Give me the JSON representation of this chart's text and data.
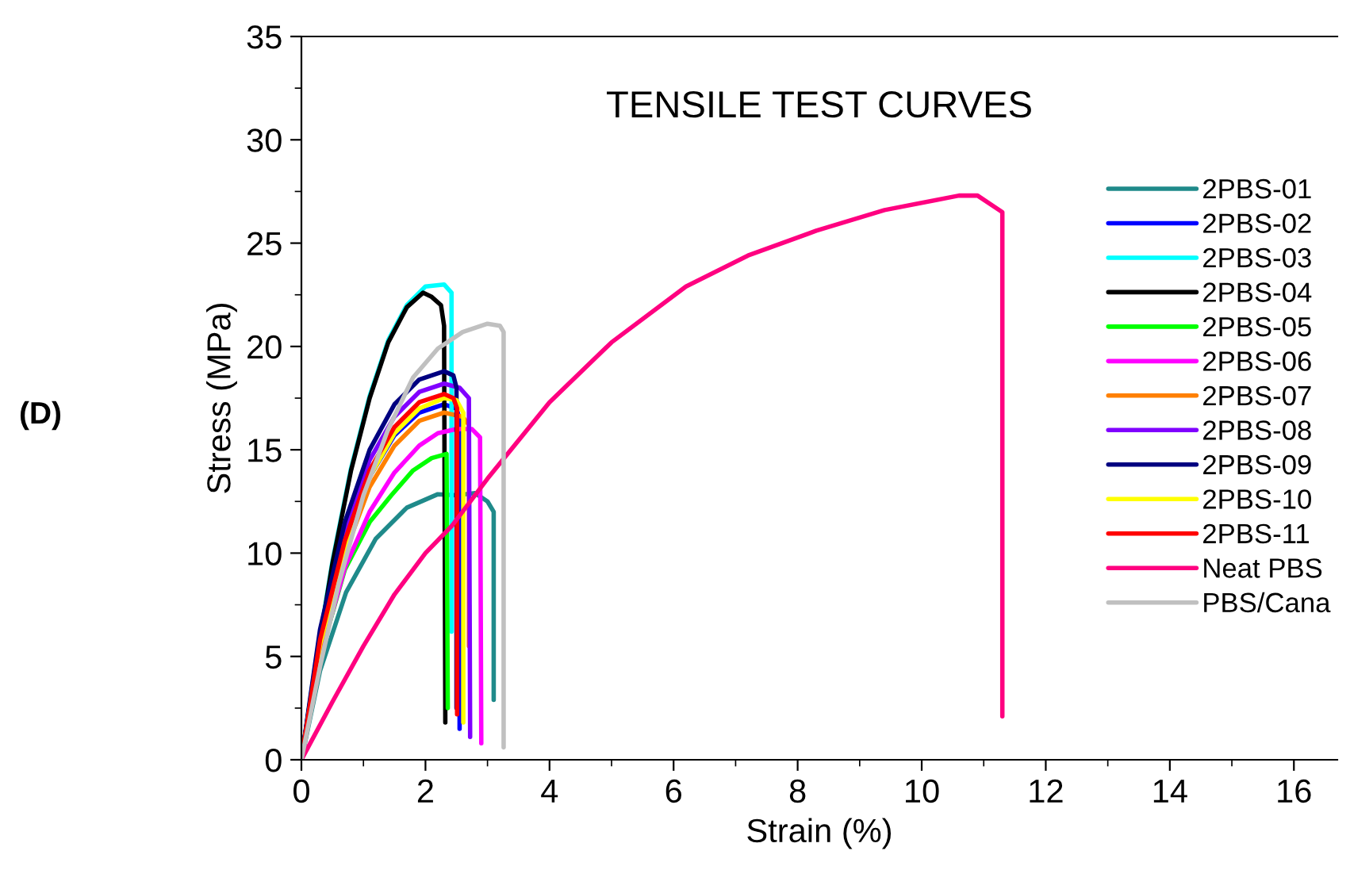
{
  "chart_data": {
    "type": "line",
    "title": "TENSILE TEST CURVES",
    "xlabel": "Strain (%)",
    "ylabel": "Stress (MPa)",
    "annotations": [
      "(D)"
    ],
    "xlim": [
      0,
      16.7
    ],
    "ylim": [
      0,
      35
    ],
    "xticks": [
      0,
      2,
      4,
      6,
      8,
      10,
      12,
      14,
      16
    ],
    "yticks": [
      0,
      5,
      10,
      15,
      20,
      25,
      30,
      35
    ],
    "grid": false,
    "legend": "right",
    "line_style": "solid",
    "marker": "none",
    "series": [
      {
        "name": "2PBS-01",
        "color": "#1f8a8a",
        "x": [
          0,
          0.3,
          0.72,
          1.2,
          1.7,
          2.2,
          2.5,
          2.8,
          3.0,
          3.1,
          3.1
        ],
        "values": [
          0,
          4.3,
          8.1,
          10.7,
          12.2,
          12.85,
          12.8,
          12.9,
          12.5,
          12,
          2.9
        ]
      },
      {
        "name": "2PBS-02",
        "color": "#0000ff",
        "x": [
          0.7,
          1.1,
          1.5,
          1.9,
          2.3,
          2.5,
          2.55,
          2.55
        ],
        "values": [
          10.4,
          13.7,
          15.7,
          16.8,
          17.2,
          17,
          16.5,
          1.5
        ]
      },
      {
        "name": "2PBS-03",
        "color": "#00ffff",
        "x": [
          0,
          0.2,
          0.5,
          0.8,
          1.1,
          1.4,
          1.7,
          2.0,
          2.3,
          2.42,
          2.42
        ],
        "values": [
          0,
          4.1,
          9.6,
          14.1,
          17.6,
          20.3,
          22,
          22.9,
          23,
          22.6,
          6.2
        ]
      },
      {
        "name": "2PBS-04",
        "color": "#000000",
        "x": [
          0,
          0.2,
          0.5,
          0.8,
          1.1,
          1.4,
          1.7,
          1.96,
          2.1,
          2.25,
          2.3,
          2.32
        ],
        "values": [
          0,
          4,
          9.5,
          14,
          17.5,
          20.2,
          21.9,
          22.6,
          22.4,
          22,
          21,
          1.8
        ]
      },
      {
        "name": "2PBS-05",
        "color": "#00ff00",
        "x": [
          0,
          0.3,
          0.7,
          1.1,
          1.45,
          1.8,
          2.1,
          2.34,
          2.36
        ],
        "values": [
          0,
          5,
          9.2,
          11.5,
          12.8,
          14,
          14.6,
          14.8,
          2.5
        ]
      },
      {
        "name": "2PBS-06",
        "color": "#ff00ff",
        "x": [
          0,
          0.3,
          0.7,
          1.1,
          1.5,
          1.9,
          2.2,
          2.5,
          2.75,
          2.88,
          2.9
        ],
        "values": [
          0,
          5,
          9.3,
          12,
          13.9,
          15.2,
          15.8,
          16,
          16,
          15.6,
          0.8
        ]
      },
      {
        "name": "2PBS-07",
        "color": "#ff8000",
        "x": [
          0,
          0.3,
          0.7,
          1.1,
          1.5,
          1.9,
          2.3,
          2.6,
          2.7,
          2.7
        ],
        "values": [
          0,
          5.5,
          10,
          13.2,
          15.2,
          16.4,
          16.8,
          16.6,
          16.2,
          5.5
        ]
      },
      {
        "name": "2PBS-08",
        "color": "#8000ff",
        "x": [
          0,
          0.3,
          0.7,
          1.1,
          1.5,
          1.9,
          2.3,
          2.55,
          2.7,
          2.72
        ],
        "values": [
          0,
          6,
          11,
          14.5,
          16.6,
          17.8,
          18.2,
          18,
          17.5,
          1.1
        ]
      },
      {
        "name": "2PBS-09",
        "color": "#000080",
        "x": [
          0,
          0.3,
          0.7,
          1.1,
          1.5,
          1.9,
          2.3,
          2.45,
          2.5,
          2.5
        ],
        "values": [
          0,
          6.3,
          11.5,
          15,
          17.2,
          18.4,
          18.8,
          18.6,
          18,
          2.5
        ]
      },
      {
        "name": "2PBS-10",
        "color": "#ffff00",
        "x": [
          0,
          0.3,
          0.7,
          1.1,
          1.5,
          1.9,
          2.3,
          2.5,
          2.61,
          2.61
        ],
        "values": [
          0,
          5.6,
          10.3,
          13.7,
          15.8,
          17,
          17.5,
          17.4,
          16.8,
          1.8
        ]
      },
      {
        "name": "2PBS-11",
        "color": "#ff0000",
        "x": [
          0,
          0.3,
          0.7,
          1.1,
          1.5,
          1.9,
          2.3,
          2.45,
          2.51,
          2.51
        ],
        "values": [
          0,
          5.8,
          10.6,
          14,
          16.1,
          17.3,
          17.7,
          17.5,
          17,
          2.2
        ]
      },
      {
        "name": "Neat PBS",
        "color": "#ff0080",
        "x": [
          0,
          0.5,
          1,
          1.5,
          2,
          2.42,
          3,
          4,
          5,
          6.2,
          7.2,
          8.3,
          9.4,
          10.6,
          10.9,
          11.3,
          11.3
        ],
        "values": [
          0,
          2.8,
          5.5,
          8,
          10,
          11.3,
          13.6,
          17.3,
          20.2,
          22.9,
          24.4,
          25.6,
          26.6,
          27.3,
          27.3,
          26.5,
          2.1
        ]
      },
      {
        "name": "PBS/Cana",
        "color": "#c0c0c0",
        "x": [
          0,
          0.3,
          0.6,
          1.0,
          1.4,
          1.8,
          2.2,
          2.6,
          3.0,
          3.2,
          3.26,
          3.26
        ],
        "values": [
          0,
          4.5,
          8.5,
          12.8,
          16,
          18.5,
          19.9,
          20.7,
          21.1,
          21,
          20.7,
          0.6
        ]
      }
    ]
  }
}
